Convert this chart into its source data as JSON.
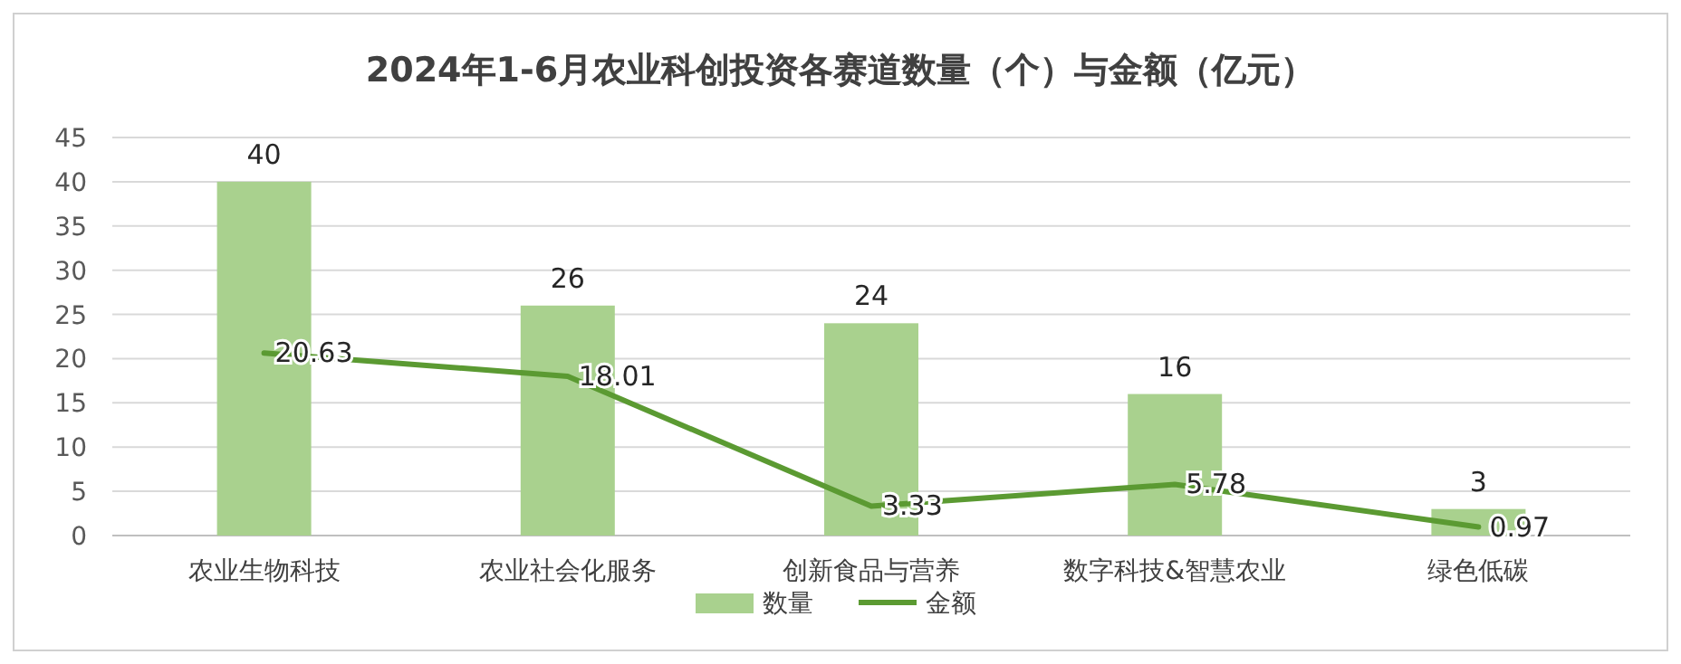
{
  "chart_data": {
    "type": "bar",
    "title": "2024年1-6月农业科创投资各赛道数量（个）与金额（亿元）",
    "categories": [
      "农业生物科技",
      "农业社会化服务",
      "创新食品与营养",
      "数字科技&智慧农业",
      "绿色低碳"
    ],
    "series": [
      {
        "name": "数量",
        "type": "bar",
        "color": "#a9d18e",
        "values": [
          40,
          26,
          24,
          16,
          3
        ]
      },
      {
        "name": "金额",
        "type": "line",
        "color": "#5b9a32",
        "values": [
          20.63,
          18.01,
          3.33,
          5.78,
          0.97
        ]
      }
    ],
    "ylim": [
      0,
      45
    ],
    "yticks": [
      0,
      5,
      10,
      15,
      20,
      25,
      30,
      35,
      40,
      45
    ],
    "grid": "y",
    "legend": "bottom",
    "data_labels": true
  }
}
